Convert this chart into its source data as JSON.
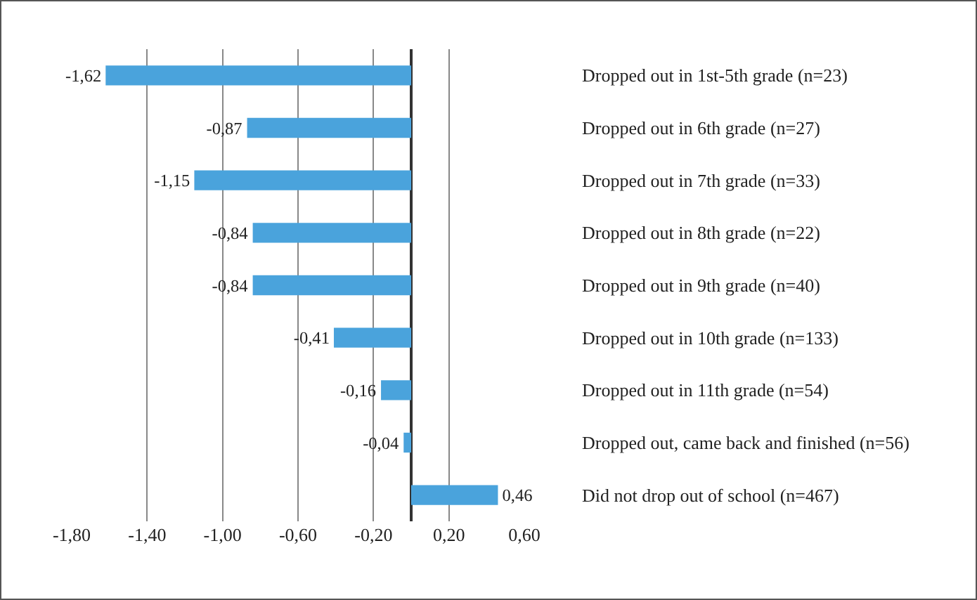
{
  "chart_data": {
    "type": "bar",
    "orientation": "horizontal",
    "categories": [
      "Dropped out in 1st-5th grade (n=23)",
      "Dropped out in 6th grade (n=27)",
      "Dropped out in 7th grade (n=33)",
      "Dropped out in 8th grade (n=22)",
      "Dropped out in 9th grade (n=40)",
      "Dropped out in 10th grade (n=133)",
      "Dropped out in 11th grade (n=54)",
      "Dropped out, came back and finished (n=56)",
      "Did not drop out of school (n=467)"
    ],
    "values": [
      -1.62,
      -0.87,
      -1.15,
      -0.84,
      -0.84,
      -0.41,
      -0.16,
      -0.04,
      0.46
    ],
    "value_labels": [
      "-1,62",
      "-0,87",
      "-1,15",
      "-0,84",
      "-0,84",
      "-0,41",
      "-0,16",
      "-0,04",
      "0,46"
    ],
    "color": "#4aa3dc",
    "xlim": [
      -1.8,
      0.6
    ],
    "xticks": [
      {
        "value": -1.8,
        "label": "-1,80"
      },
      {
        "value": -1.4,
        "label": "-1,40"
      },
      {
        "value": -1.0,
        "label": "-1,00"
      },
      {
        "value": -0.6,
        "label": "-0,60"
      },
      {
        "value": -0.2,
        "label": "-0,20"
      },
      {
        "value": 0.2,
        "label": "0,20"
      },
      {
        "value": 0.6,
        "label": "0,60"
      }
    ],
    "grid": "x"
  }
}
